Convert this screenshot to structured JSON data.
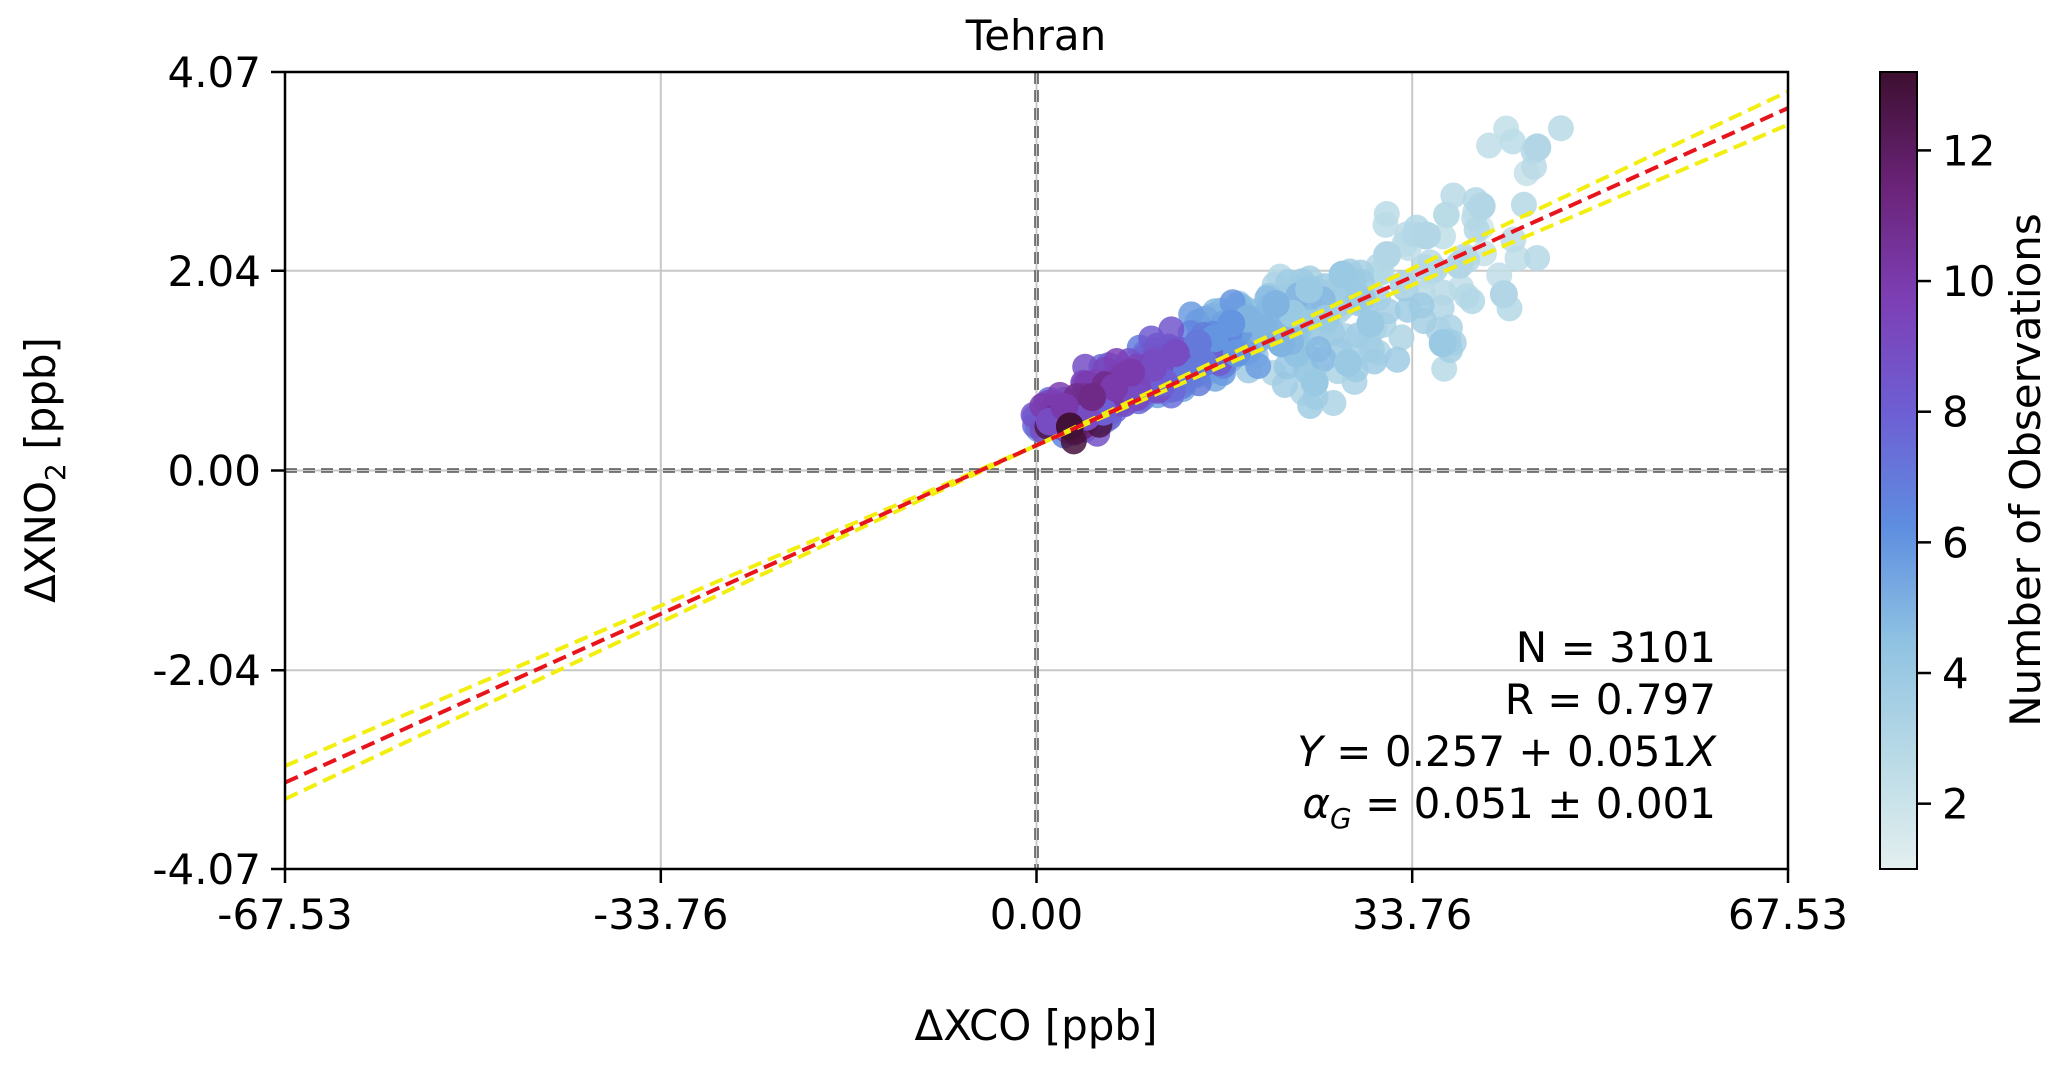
{
  "chart_data": {
    "type": "scatter",
    "title": "Tehran",
    "xlabel": "ΔXCO [ppb]",
    "ylabel": "ΔXNO",
    "ylabel_sub": "2",
    "ylabel_unit": " [ppb]",
    "xlim": [
      -67.53,
      67.53
    ],
    "ylim": [
      -4.07,
      4.07
    ],
    "xticks": [
      "-67.53",
      "-33.76",
      "0.00",
      "33.76",
      "67.53"
    ],
    "yticks": [
      "4.07",
      "2.04",
      "0.00",
      "-2.04",
      "-4.07"
    ],
    "grid": true,
    "colorbar": {
      "label": "Number of Observations",
      "range": [
        1,
        13.2
      ],
      "ticks": [
        "2",
        "4",
        "6",
        "8",
        "10",
        "12"
      ],
      "colors": [
        "#e3efef",
        "#b8dae6",
        "#8fc2e2",
        "#5e8ee0",
        "#6e5fd4",
        "#7d3fb5",
        "#6a2378",
        "#3d0f30"
      ]
    },
    "fit": {
      "intercept": 0.257,
      "slope": 0.051,
      "slope_uncertainty": 0.001,
      "fit_color": "#e8141c",
      "band_color": "#f2ee10"
    },
    "stats": {
      "n_label": "N = 3101",
      "r_label": "R = 0.797",
      "eq_prefix": "Y",
      "eq_middle": " = 0.257 + 0.051",
      "eq_suffix": "X",
      "alpha_symbol": "α",
      "alpha_sub": "G",
      "alpha_value": " = 0.051 ± 0.001"
    },
    "density_points": [
      {
        "x": 3.0,
        "y": 0.45,
        "c": 13
      },
      {
        "x": 1.2,
        "y": 0.5,
        "c": 9
      },
      {
        "x": 2.5,
        "y": 0.65,
        "c": 10
      },
      {
        "x": 5.0,
        "y": 0.75,
        "c": 11
      },
      {
        "x": 7.0,
        "y": 0.85,
        "c": 10
      },
      {
        "x": 8.5,
        "y": 1.0,
        "c": 10
      },
      {
        "x": 10.5,
        "y": 1.05,
        "c": 9
      },
      {
        "x": 4.5,
        "y": 0.55,
        "c": 9
      },
      {
        "x": 6.0,
        "y": 0.6,
        "c": 8
      },
      {
        "x": 9.0,
        "y": 0.75,
        "c": 9
      },
      {
        "x": 12.5,
        "y": 1.2,
        "c": 9
      },
      {
        "x": 11.5,
        "y": 0.9,
        "c": 8
      },
      {
        "x": 13.5,
        "y": 1.0,
        "c": 7
      },
      {
        "x": 14.5,
        "y": 1.3,
        "c": 7
      },
      {
        "x": 16.0,
        "y": 1.35,
        "c": 6
      },
      {
        "x": 15.0,
        "y": 1.1,
        "c": 7
      },
      {
        "x": 17.5,
        "y": 1.5,
        "c": 6
      },
      {
        "x": 19.0,
        "y": 1.55,
        "c": 5
      },
      {
        "x": 18.0,
        "y": 1.2,
        "c": 6
      },
      {
        "x": 20.5,
        "y": 1.45,
        "c": 5
      },
      {
        "x": 21.5,
        "y": 1.7,
        "c": 5
      },
      {
        "x": 23.0,
        "y": 1.6,
        "c": 4
      },
      {
        "x": 22.0,
        "y": 1.3,
        "c": 5
      },
      {
        "x": 24.5,
        "y": 1.85,
        "c": 4
      },
      {
        "x": 26.0,
        "y": 1.55,
        "c": 4
      },
      {
        "x": 27.5,
        "y": 2.0,
        "c": 4
      },
      {
        "x": 29.0,
        "y": 1.75,
        "c": 4
      },
      {
        "x": 30.0,
        "y": 1.5,
        "c": 4
      },
      {
        "x": 31.5,
        "y": 2.2,
        "c": 3
      },
      {
        "x": 33.0,
        "y": 1.9,
        "c": 3
      },
      {
        "x": 35.0,
        "y": 2.4,
        "c": 3
      },
      {
        "x": 36.5,
        "y": 1.3,
        "c": 4
      },
      {
        "x": 28.0,
        "y": 1.1,
        "c": 4
      },
      {
        "x": 38.0,
        "y": 2.1,
        "c": 3
      },
      {
        "x": 40.0,
        "y": 2.7,
        "c": 3
      },
      {
        "x": 42.0,
        "y": 1.8,
        "c": 3
      },
      {
        "x": 25.0,
        "y": 0.9,
        "c": 4
      },
      {
        "x": 45.0,
        "y": 3.3,
        "c": 3
      }
    ]
  }
}
